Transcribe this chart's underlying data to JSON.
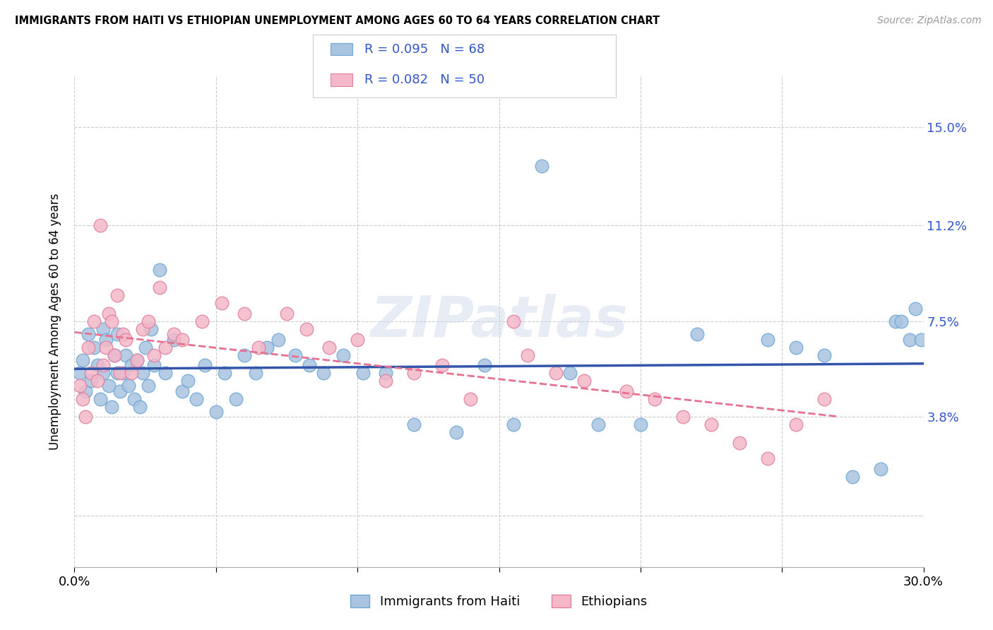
{
  "title": "IMMIGRANTS FROM HAITI VS ETHIOPIAN UNEMPLOYMENT AMONG AGES 60 TO 64 YEARS CORRELATION CHART",
  "source": "Source: ZipAtlas.com",
  "ylabel": "Unemployment Among Ages 60 to 64 years",
  "xlim": [
    0,
    30
  ],
  "ylim": [
    -2,
    17
  ],
  "yticks": [
    0,
    3.8,
    7.5,
    11.2,
    15.0
  ],
  "ytick_labels": [
    "",
    "3.8%",
    "7.5%",
    "11.2%",
    "15.0%"
  ],
  "xticks": [
    0,
    5,
    10,
    15,
    20,
    25,
    30
  ],
  "haiti_color": "#a8c4e0",
  "haiti_edge_color": "#6fa8d4",
  "ethiopian_color": "#f4b8c8",
  "ethiopian_edge_color": "#e080a0",
  "haiti_line_color": "#3355aa",
  "ethiopian_line_color": "#e87090",
  "haiti_R": 0.095,
  "haiti_N": 68,
  "ethiopian_R": 0.082,
  "ethiopian_N": 50,
  "watermark": "ZIPatlas",
  "haiti_x": [
    0.2,
    0.3,
    0.4,
    0.5,
    0.6,
    0.7,
    0.8,
    0.9,
    1.0,
    1.0,
    1.1,
    1.2,
    1.3,
    1.4,
    1.5,
    1.5,
    1.6,
    1.7,
    1.8,
    1.9,
    2.0,
    2.1,
    2.2,
    2.3,
    2.4,
    2.5,
    2.6,
    2.7,
    2.8,
    3.0,
    3.2,
    3.5,
    3.8,
    4.0,
    4.3,
    4.6,
    5.0,
    5.3,
    5.7,
    6.0,
    6.4,
    6.8,
    7.2,
    7.8,
    8.3,
    8.8,
    9.5,
    10.2,
    11.0,
    12.0,
    13.5,
    14.5,
    15.5,
    16.5,
    17.5,
    18.5,
    20.0,
    22.0,
    24.5,
    25.5,
    26.5,
    27.5,
    28.5,
    29.0,
    29.2,
    29.5,
    29.7,
    29.9
  ],
  "haiti_y": [
    5.5,
    6.0,
    4.8,
    7.0,
    5.2,
    6.5,
    5.8,
    4.5,
    7.2,
    5.5,
    6.8,
    5.0,
    4.2,
    6.2,
    7.0,
    5.5,
    4.8,
    5.5,
    6.2,
    5.0,
    5.8,
    4.5,
    6.0,
    4.2,
    5.5,
    6.5,
    5.0,
    7.2,
    5.8,
    9.5,
    5.5,
    6.8,
    4.8,
    5.2,
    4.5,
    5.8,
    4.0,
    5.5,
    4.5,
    6.2,
    5.5,
    6.5,
    6.8,
    6.2,
    5.8,
    5.5,
    6.2,
    5.5,
    5.5,
    3.5,
    3.2,
    5.8,
    3.5,
    13.5,
    5.5,
    3.5,
    3.5,
    7.0,
    6.8,
    6.5,
    6.2,
    1.5,
    1.8,
    7.5,
    7.5,
    6.8,
    8.0,
    6.8
  ],
  "ethiopian_x": [
    0.2,
    0.3,
    0.4,
    0.5,
    0.6,
    0.7,
    0.8,
    0.9,
    1.0,
    1.1,
    1.2,
    1.3,
    1.4,
    1.5,
    1.6,
    1.7,
    1.8,
    2.0,
    2.2,
    2.4,
    2.6,
    2.8,
    3.0,
    3.2,
    3.5,
    3.8,
    4.5,
    5.2,
    6.0,
    6.5,
    7.5,
    8.2,
    9.0,
    10.0,
    11.0,
    12.0,
    13.0,
    14.0,
    15.5,
    16.0,
    17.0,
    18.0,
    19.5,
    20.5,
    21.5,
    22.5,
    23.5,
    24.5,
    25.5,
    26.5
  ],
  "ethiopian_y": [
    5.0,
    4.5,
    3.8,
    6.5,
    5.5,
    7.5,
    5.2,
    11.2,
    5.8,
    6.5,
    7.8,
    7.5,
    6.2,
    8.5,
    5.5,
    7.0,
    6.8,
    5.5,
    6.0,
    7.2,
    7.5,
    6.2,
    8.8,
    6.5,
    7.0,
    6.8,
    7.5,
    8.2,
    7.8,
    6.5,
    7.8,
    7.2,
    6.5,
    6.8,
    5.2,
    5.5,
    5.8,
    4.5,
    7.5,
    6.2,
    5.5,
    5.2,
    4.8,
    4.5,
    3.8,
    3.5,
    2.8,
    2.2,
    3.5,
    4.5
  ]
}
